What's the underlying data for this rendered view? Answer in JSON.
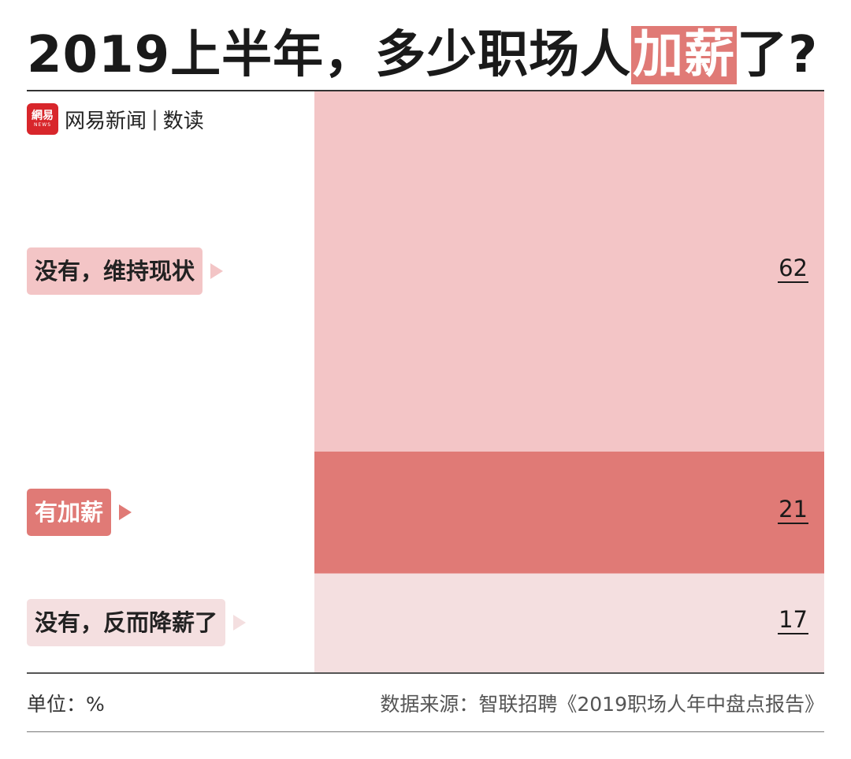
{
  "header": {
    "title_pre": "2019上半年，多少职场人",
    "title_highlight": "加薪",
    "title_post": "了?"
  },
  "brand": {
    "logo_text": "網易",
    "logo_sub": "NEWS",
    "name": "网易新闻",
    "separator": "|",
    "sub": "数读"
  },
  "colors": {
    "accent": "#e07a76"
  },
  "chart_data": {
    "type": "bar",
    "orientation": "stacked-100",
    "categories": [
      "没有，维持现状",
      "有加薪",
      "没有，反而降薪了"
    ],
    "values": [
      62,
      21,
      17
    ],
    "value_labels": [
      "62",
      "21",
      "17"
    ],
    "colors": [
      "#f3c5c6",
      "#e07a76",
      "#f4dfe0"
    ],
    "label_colors": [
      "#f3c5c6",
      "#e07a76",
      "#f4dfe0"
    ],
    "label_text_colors": [
      "#222222",
      "#ffffff",
      "#222222"
    ],
    "title": "2019上半年，多少职场人加薪了?",
    "unit": "%"
  },
  "footer": {
    "unit": "单位：%",
    "source": "数据来源：智联招聘《2019职场人年中盘点报告》"
  }
}
